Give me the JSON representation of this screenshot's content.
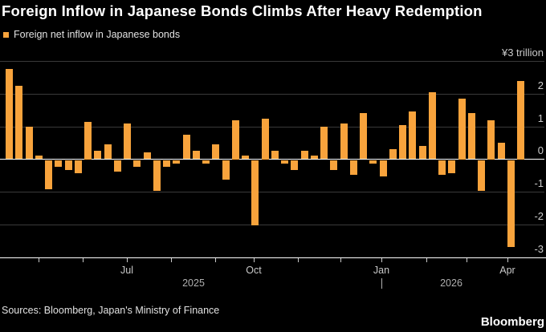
{
  "title": "Foreign Inflow in Japanese Bonds Climbs After Heavy Redemption",
  "legend": {
    "label": "Foreign net inflow in Japanese bonds"
  },
  "y_axis": {
    "unit_label": "¥3 trillion",
    "unit_value": 3,
    "tick_labels": [
      {
        "label": "2",
        "value": 2
      },
      {
        "label": "1",
        "value": 1
      },
      {
        "label": "0",
        "value": 0
      },
      {
        "label": "-1",
        "value": -1
      },
      {
        "label": "-2",
        "value": -2
      },
      {
        "label": "-3",
        "value": -3
      }
    ]
  },
  "x_axis": {
    "month_labels": [
      {
        "label": "Jul",
        "x": 158
      },
      {
        "label": "Oct",
        "x": 316
      },
      {
        "label": "Jan",
        "x": 475
      },
      {
        "label": "Apr",
        "x": 632
      }
    ],
    "year_labels": [
      {
        "label": "2025",
        "x": 241
      },
      {
        "label": "2026",
        "x": 562
      }
    ],
    "year_divider_x": 475,
    "minor_tick_xs": [
      48,
      103,
      158,
      213,
      268,
      316,
      371,
      424,
      475,
      531,
      581,
      632
    ]
  },
  "footer": {
    "sources": "Sources: Bloomberg, Japan's Ministry of Finance",
    "brand": "Bloomberg"
  },
  "colors": {
    "background": "#000000",
    "bar": "#F8A33C",
    "gridline": "#3A3A3A",
    "zero_line": "#FFFFFF",
    "axis_line": "#FFFFFF",
    "title_text": "#FFFFFF",
    "axis_text": "#C9C9C9",
    "year_text": "#B0B0B0",
    "legend_text": "#E2E2E2",
    "sources_text": "#E2E2E2"
  },
  "chart_data": {
    "type": "bar",
    "title": "Foreign Inflow in Japanese Bonds Climbs After Heavy Redemption",
    "unit": "¥ trillion",
    "cadence": "weekly",
    "ylim": [
      -3,
      3
    ],
    "y_gridlines": [
      3,
      2,
      1,
      0,
      -1,
      -2,
      -3
    ],
    "x_tick_labels": [
      "Jul",
      "Oct",
      "Jan",
      "Apr"
    ],
    "x_year_labels": [
      "2025",
      "2026"
    ],
    "legend_position": "top-left",
    "series": [
      {
        "name": "Foreign net inflow in Japanese bonds",
        "values": [
          2.75,
          2.25,
          1.0,
          0.1,
          -0.9,
          -0.2,
          -0.3,
          -0.4,
          1.15,
          0.25,
          0.45,
          -0.35,
          1.1,
          -0.2,
          0.2,
          -0.95,
          -0.2,
          -0.1,
          0.75,
          0.25,
          -0.1,
          0.45,
          -0.6,
          1.2,
          0.1,
          -2.0,
          1.25,
          0.25,
          -0.1,
          -0.3,
          0.25,
          0.1,
          1.0,
          -0.3,
          1.1,
          -0.45,
          1.4,
          -0.1,
          -0.5,
          0.3,
          1.05,
          1.45,
          0.4,
          2.05,
          -0.45,
          -0.4,
          1.85,
          1.4,
          -0.95,
          1.2,
          0.5,
          -2.65,
          2.4
        ]
      }
    ]
  }
}
